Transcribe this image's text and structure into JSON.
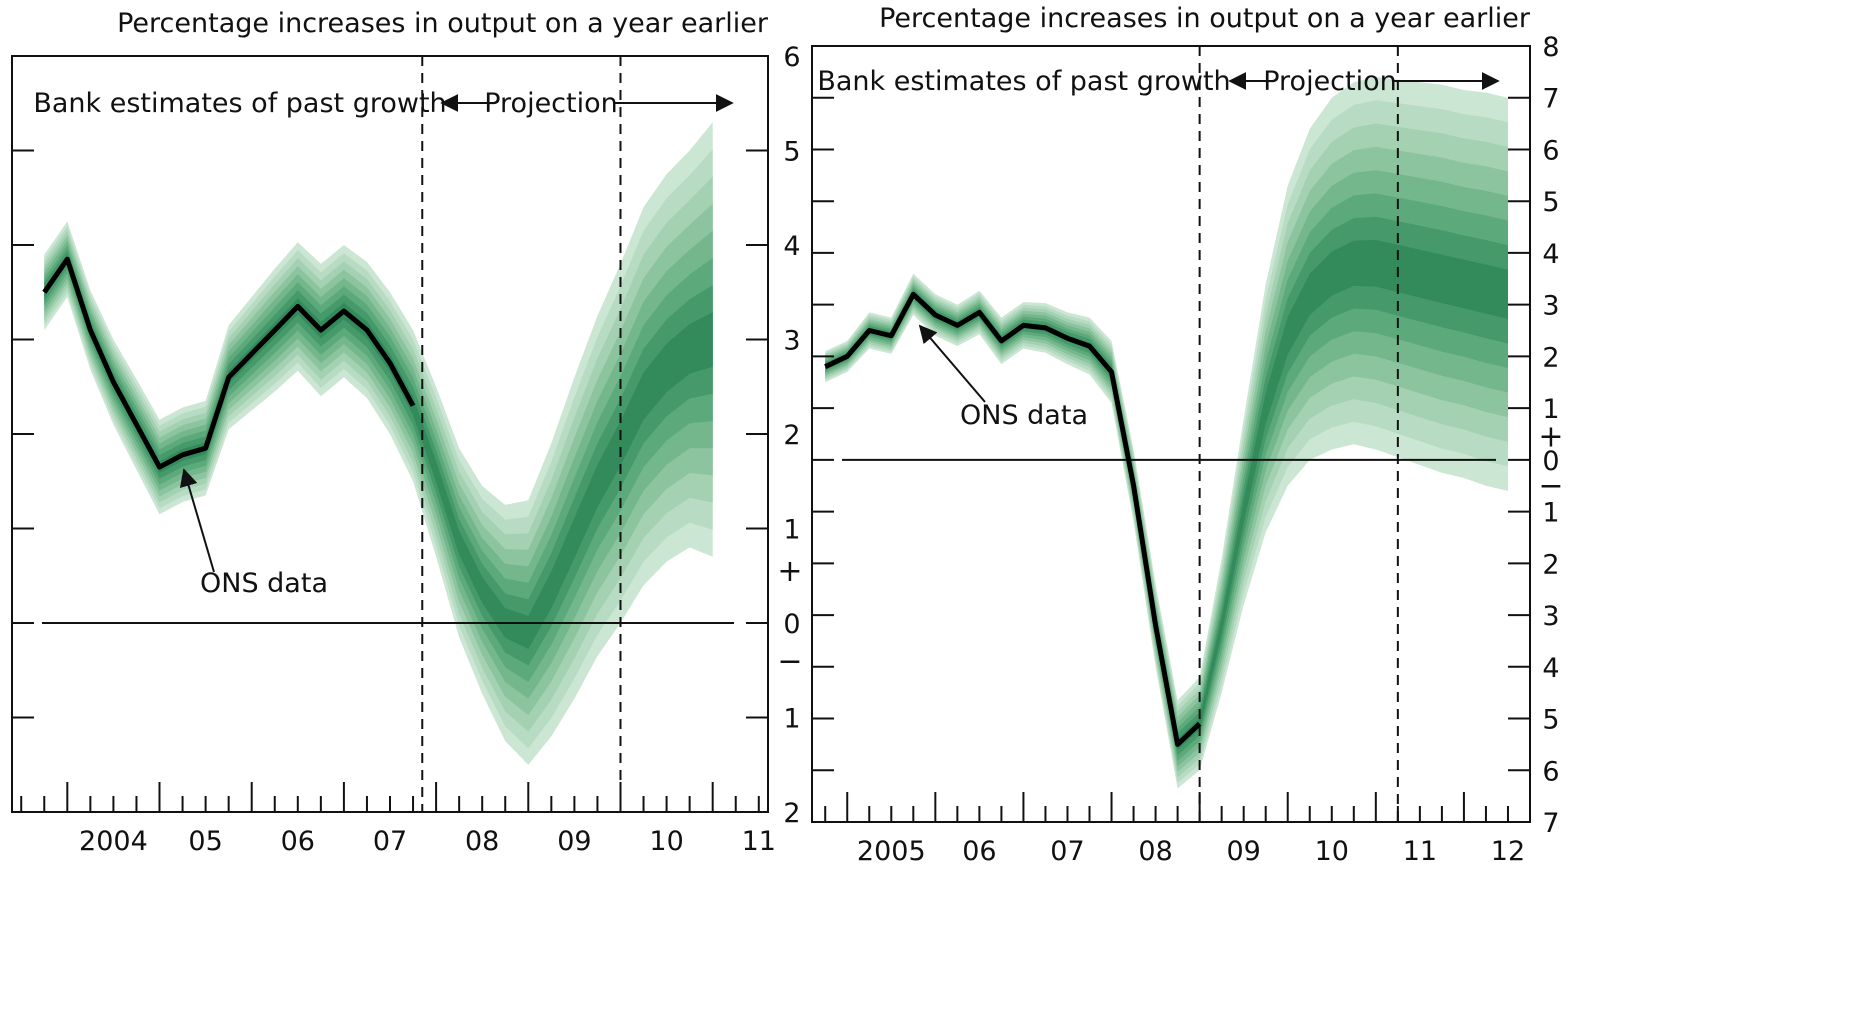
{
  "chart_data": [
    {
      "type": "area",
      "title": "",
      "subtitle": "Percentage increases in output on a year earlier",
      "xlabel": "",
      "ylabel": "",
      "ylim": [
        -2,
        6
      ],
      "yticks": [
        -1,
        0,
        1,
        2,
        3,
        4,
        5
      ],
      "ytick_labels": [
        "1",
        "0",
        "1",
        "2",
        "3",
        "4",
        "5"
      ],
      "sign_labels": [
        "+",
        "−"
      ],
      "xlim": [
        2003.4,
        2011.6
      ],
      "xtick_values": [
        2004,
        2005,
        2006,
        2007,
        2008,
        2009,
        2010,
        2011
      ],
      "xtick_labels": [
        "2004",
        "05",
        "06",
        "07",
        "08",
        "09",
        "10",
        "11"
      ],
      "grid": false,
      "fan_colors": [
        "#cbe6d2",
        "#b8dcc3",
        "#a3d1b1",
        "#8cc4a0",
        "#74b78c",
        "#5caa7b",
        "#46996a",
        "#338a5b"
      ],
      "annotations": {
        "past": "Bank estimates of past growth",
        "projection": "Projection",
        "ons": "ONS data"
      },
      "vlines": [
        2007.85,
        2010.0
      ],
      "series": [
        {
          "name": "ONS data",
          "x": [
            2003.75,
            2004.0,
            2004.25,
            2004.5,
            2004.75,
            2005.0,
            2005.25,
            2005.5,
            2005.75,
            2006.0,
            2006.25,
            2006.5,
            2006.75,
            2007.0,
            2007.25,
            2007.5,
            2007.75
          ],
          "values": [
            3.5,
            3.85,
            3.1,
            2.55,
            2.1,
            1.65,
            1.78,
            1.85,
            2.6,
            2.85,
            3.1,
            3.35,
            3.1,
            3.3,
            3.1,
            2.75,
            2.3
          ]
        }
      ],
      "fan": {
        "x": [
          2003.75,
          2004.0,
          2004.25,
          2004.5,
          2004.75,
          2005.0,
          2005.25,
          2005.5,
          2005.75,
          2006.0,
          2006.25,
          2006.5,
          2006.75,
          2007.0,
          2007.25,
          2007.5,
          2007.75,
          2008.0,
          2008.25,
          2008.5,
          2008.75,
          2009.0,
          2009.25,
          2009.5,
          2009.75,
          2010.0,
          2010.25,
          2010.5,
          2010.75,
          2011.0
        ],
        "center": [
          3.5,
          3.85,
          3.1,
          2.55,
          2.1,
          1.65,
          1.78,
          1.85,
          2.6,
          2.85,
          3.1,
          3.35,
          3.1,
          3.3,
          3.1,
          2.75,
          2.3,
          1.6,
          0.85,
          0.35,
          0.0,
          -0.1,
          0.35,
          0.9,
          1.45,
          1.9,
          2.4,
          2.7,
          2.9,
          3.0
        ],
        "halfwidth": [
          0.4,
          0.4,
          0.42,
          0.45,
          0.48,
          0.5,
          0.5,
          0.5,
          0.55,
          0.6,
          0.65,
          0.68,
          0.7,
          0.7,
          0.72,
          0.75,
          0.8,
          0.9,
          1.0,
          1.1,
          1.25,
          1.4,
          1.55,
          1.7,
          1.8,
          1.9,
          2.0,
          2.05,
          2.1,
          2.3
        ]
      }
    },
    {
      "type": "area",
      "title": "",
      "subtitle": "Percentage increases in output on a year earlier",
      "xlabel": "",
      "ylabel": "",
      "ylim": [
        -7,
        8
      ],
      "yticks": [
        -6,
        -5,
        -4,
        -3,
        -2,
        -1,
        0,
        1,
        2,
        3,
        4,
        5,
        6,
        7
      ],
      "ytick_labels": [
        "6",
        "5",
        "4",
        "3",
        "2",
        "1",
        "0",
        "1",
        "2",
        "3",
        "4",
        "5",
        "6",
        "7"
      ],
      "corner_labels": [
        "8",
        "7"
      ],
      "sign_labels": [
        "+",
        "−"
      ],
      "xlim": [
        2004.6,
        2012.75
      ],
      "xtick_values": [
        2005,
        2006,
        2007,
        2008,
        2009,
        2010,
        2011,
        2012
      ],
      "xtick_labels": [
        "2005",
        "06",
        "07",
        "08",
        "09",
        "10",
        "11",
        "12"
      ],
      "grid": false,
      "fan_colors": [
        "#cbe6d2",
        "#b8dcc3",
        "#a3d1b1",
        "#8cc4a0",
        "#74b78c",
        "#5caa7b",
        "#46996a",
        "#338a5b"
      ],
      "annotations": {
        "past": "Bank estimates of past growth",
        "projection": "Projection",
        "ons": "ONS data"
      },
      "vlines": [
        2009.0,
        2011.25
      ],
      "series": [
        {
          "name": "ONS data",
          "x": [
            2004.75,
            2005.0,
            2005.25,
            2005.5,
            2005.75,
            2006.0,
            2006.25,
            2006.5,
            2006.75,
            2007.0,
            2007.25,
            2007.5,
            2007.75,
            2008.0,
            2008.25,
            2008.5,
            2008.75,
            2009.0
          ],
          "values": [
            1.8,
            2.0,
            2.5,
            2.4,
            3.2,
            2.8,
            2.6,
            2.85,
            2.3,
            2.6,
            2.55,
            2.35,
            2.2,
            1.7,
            -0.5,
            -3.2,
            -5.5,
            -5.1
          ]
        }
      ],
      "fan": {
        "x": [
          2004.75,
          2005.0,
          2005.25,
          2005.5,
          2005.75,
          2006.0,
          2006.25,
          2006.5,
          2006.75,
          2007.0,
          2007.25,
          2007.5,
          2007.75,
          2008.0,
          2008.25,
          2008.5,
          2008.75,
          2009.0,
          2009.25,
          2009.5,
          2009.75,
          2010.0,
          2010.25,
          2010.5,
          2010.75,
          2011.0,
          2011.25,
          2011.5,
          2011.75,
          2012.0,
          2012.25,
          2012.5
        ],
        "center": [
          1.8,
          2.0,
          2.5,
          2.4,
          3.2,
          2.8,
          2.6,
          2.85,
          2.3,
          2.6,
          2.55,
          2.35,
          2.2,
          1.7,
          -0.5,
          -3.2,
          -5.5,
          -5.1,
          -3.2,
          -1.0,
          1.0,
          2.4,
          3.2,
          3.6,
          3.8,
          3.8,
          3.7,
          3.6,
          3.5,
          3.4,
          3.3,
          3.2
        ],
        "halfwidth": [
          0.3,
          0.3,
          0.35,
          0.35,
          0.4,
          0.4,
          0.4,
          0.42,
          0.45,
          0.45,
          0.48,
          0.5,
          0.55,
          0.6,
          0.7,
          0.8,
          0.85,
          0.9,
          1.3,
          1.8,
          2.4,
          2.9,
          3.2,
          3.4,
          3.5,
          3.6,
          3.65,
          3.7,
          3.75,
          3.75,
          3.8,
          3.8
        ]
      }
    }
  ]
}
